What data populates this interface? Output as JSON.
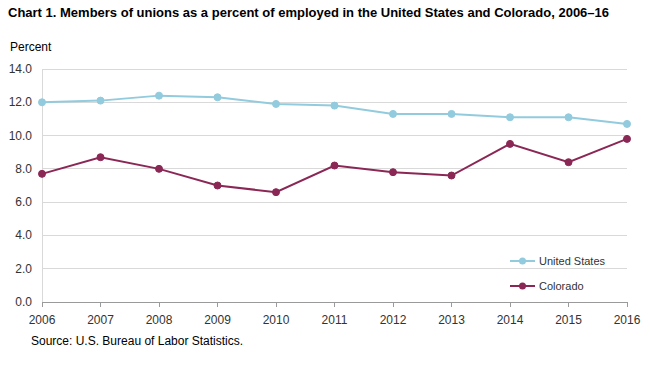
{
  "chart_data": {
    "type": "line",
    "title": "Chart 1. Members of unions as a percent of employed in the United States and Colorado, 2006–16",
    "y_label": "Percent",
    "source": "Source: U.S. Bureau of Labor Statistics.",
    "categories": [
      "2006",
      "2007",
      "2008",
      "2009",
      "2010",
      "2011",
      "2012",
      "2013",
      "2014",
      "2015",
      "2016"
    ],
    "series": [
      {
        "name": "United States",
        "color": "#92cbdd",
        "marker": "circle",
        "values": [
          12.0,
          12.1,
          12.4,
          12.3,
          11.9,
          11.8,
          11.3,
          11.3,
          11.1,
          11.1,
          10.7
        ]
      },
      {
        "name": "Colorado",
        "color": "#8b2755",
        "marker": "circle",
        "values": [
          7.7,
          8.7,
          8.0,
          7.0,
          6.6,
          8.2,
          7.8,
          7.6,
          9.5,
          8.4,
          9.8
        ]
      }
    ],
    "ylim": [
      0,
      14
    ],
    "yticks": [
      {
        "value": 0,
        "label": "0.0"
      },
      {
        "value": 2,
        "label": "2.0"
      },
      {
        "value": 4,
        "label": "4.0"
      },
      {
        "value": 6,
        "label": "6.0"
      },
      {
        "value": 8,
        "label": "8.0"
      },
      {
        "value": 10,
        "label": "10.0"
      },
      {
        "value": 12,
        "label": "12.0"
      },
      {
        "value": 14,
        "label": "14.0"
      }
    ],
    "grid": true,
    "legend": "lower right"
  }
}
